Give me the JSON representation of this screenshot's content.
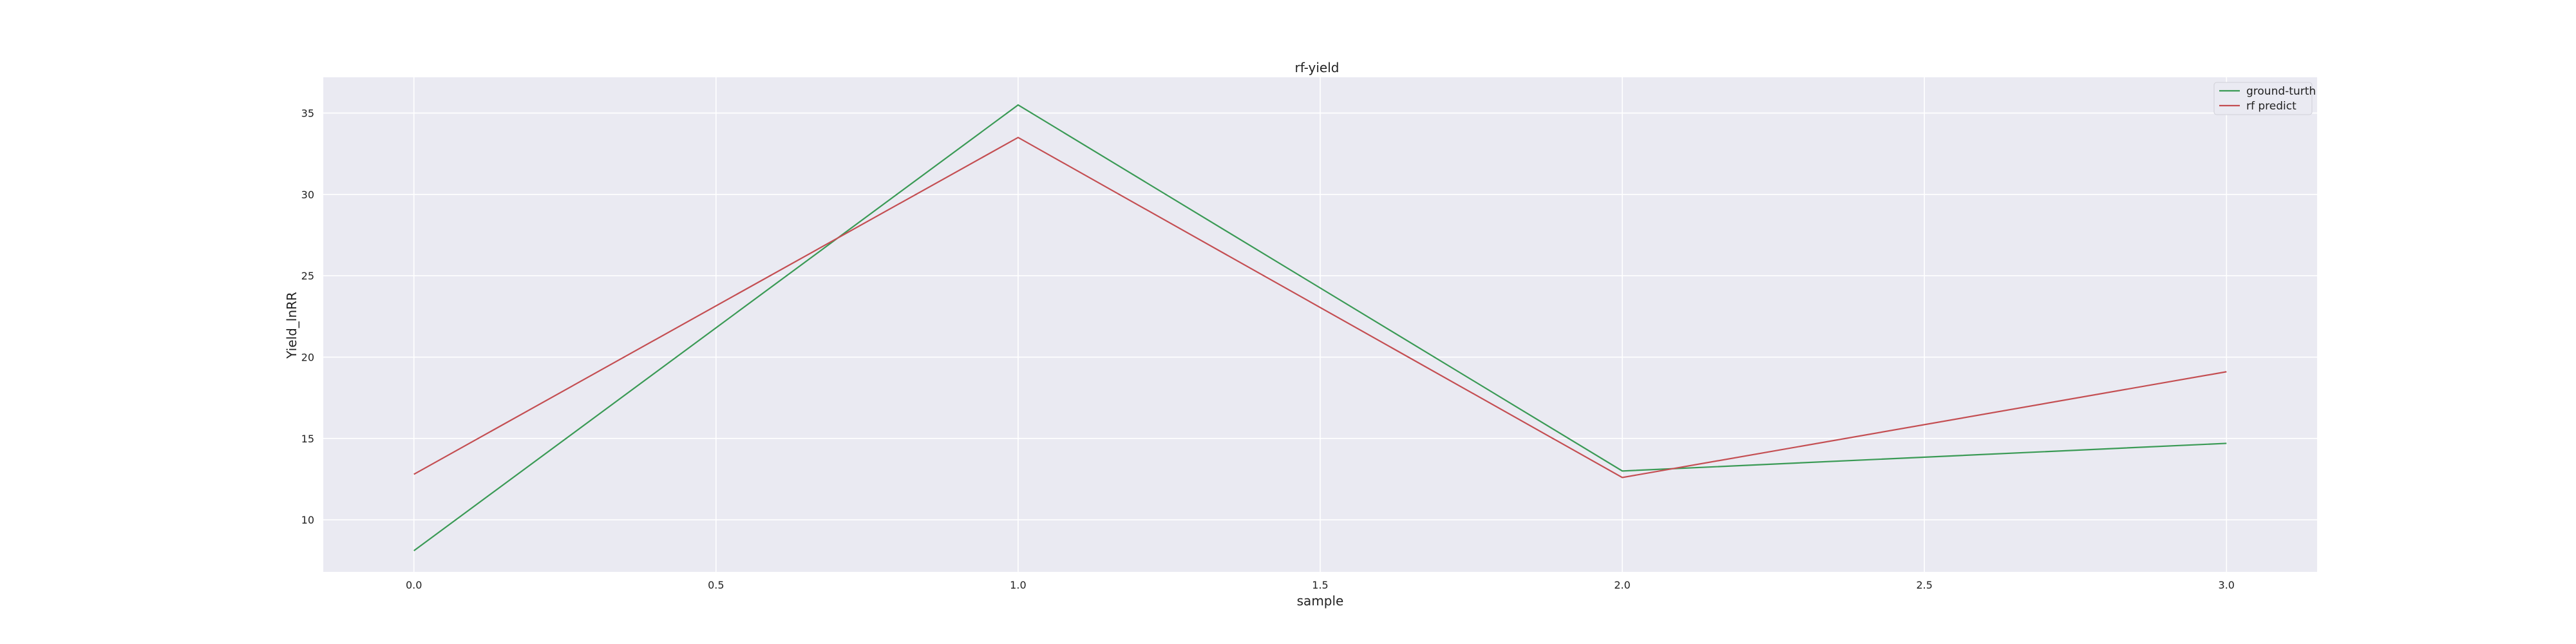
{
  "chart_data": {
    "type": "line",
    "title": "rf-yield",
    "xlabel": "sample",
    "ylabel": "Yield_lnRR",
    "x": [
      0,
      1,
      2,
      3
    ],
    "series": [
      {
        "name": "ground-turth",
        "color": "#3a9a55",
        "values": [
          8.1,
          35.5,
          13.0,
          14.7
        ]
      },
      {
        "name": "rf predict",
        "color": "#c44e52",
        "values": [
          12.8,
          33.5,
          12.6,
          19.1
        ]
      }
    ],
    "xlim": [
      -0.15,
      3.15
    ],
    "ylim": [
      6.8,
      37.2
    ],
    "xticks": [
      0.0,
      0.5,
      1.0,
      1.5,
      2.0,
      2.5,
      3.0
    ],
    "xtick_labels": [
      "0.0",
      "0.5",
      "1.0",
      "1.5",
      "2.0",
      "2.5",
      "3.0"
    ],
    "yticks": [
      10,
      15,
      20,
      25,
      30,
      35
    ],
    "ytick_labels": [
      "10",
      "15",
      "20",
      "25",
      "30",
      "35"
    ],
    "grid": true,
    "legend_position": "top-right",
    "background_color": "#eaeaf2",
    "grid_color": "#ffffff"
  }
}
